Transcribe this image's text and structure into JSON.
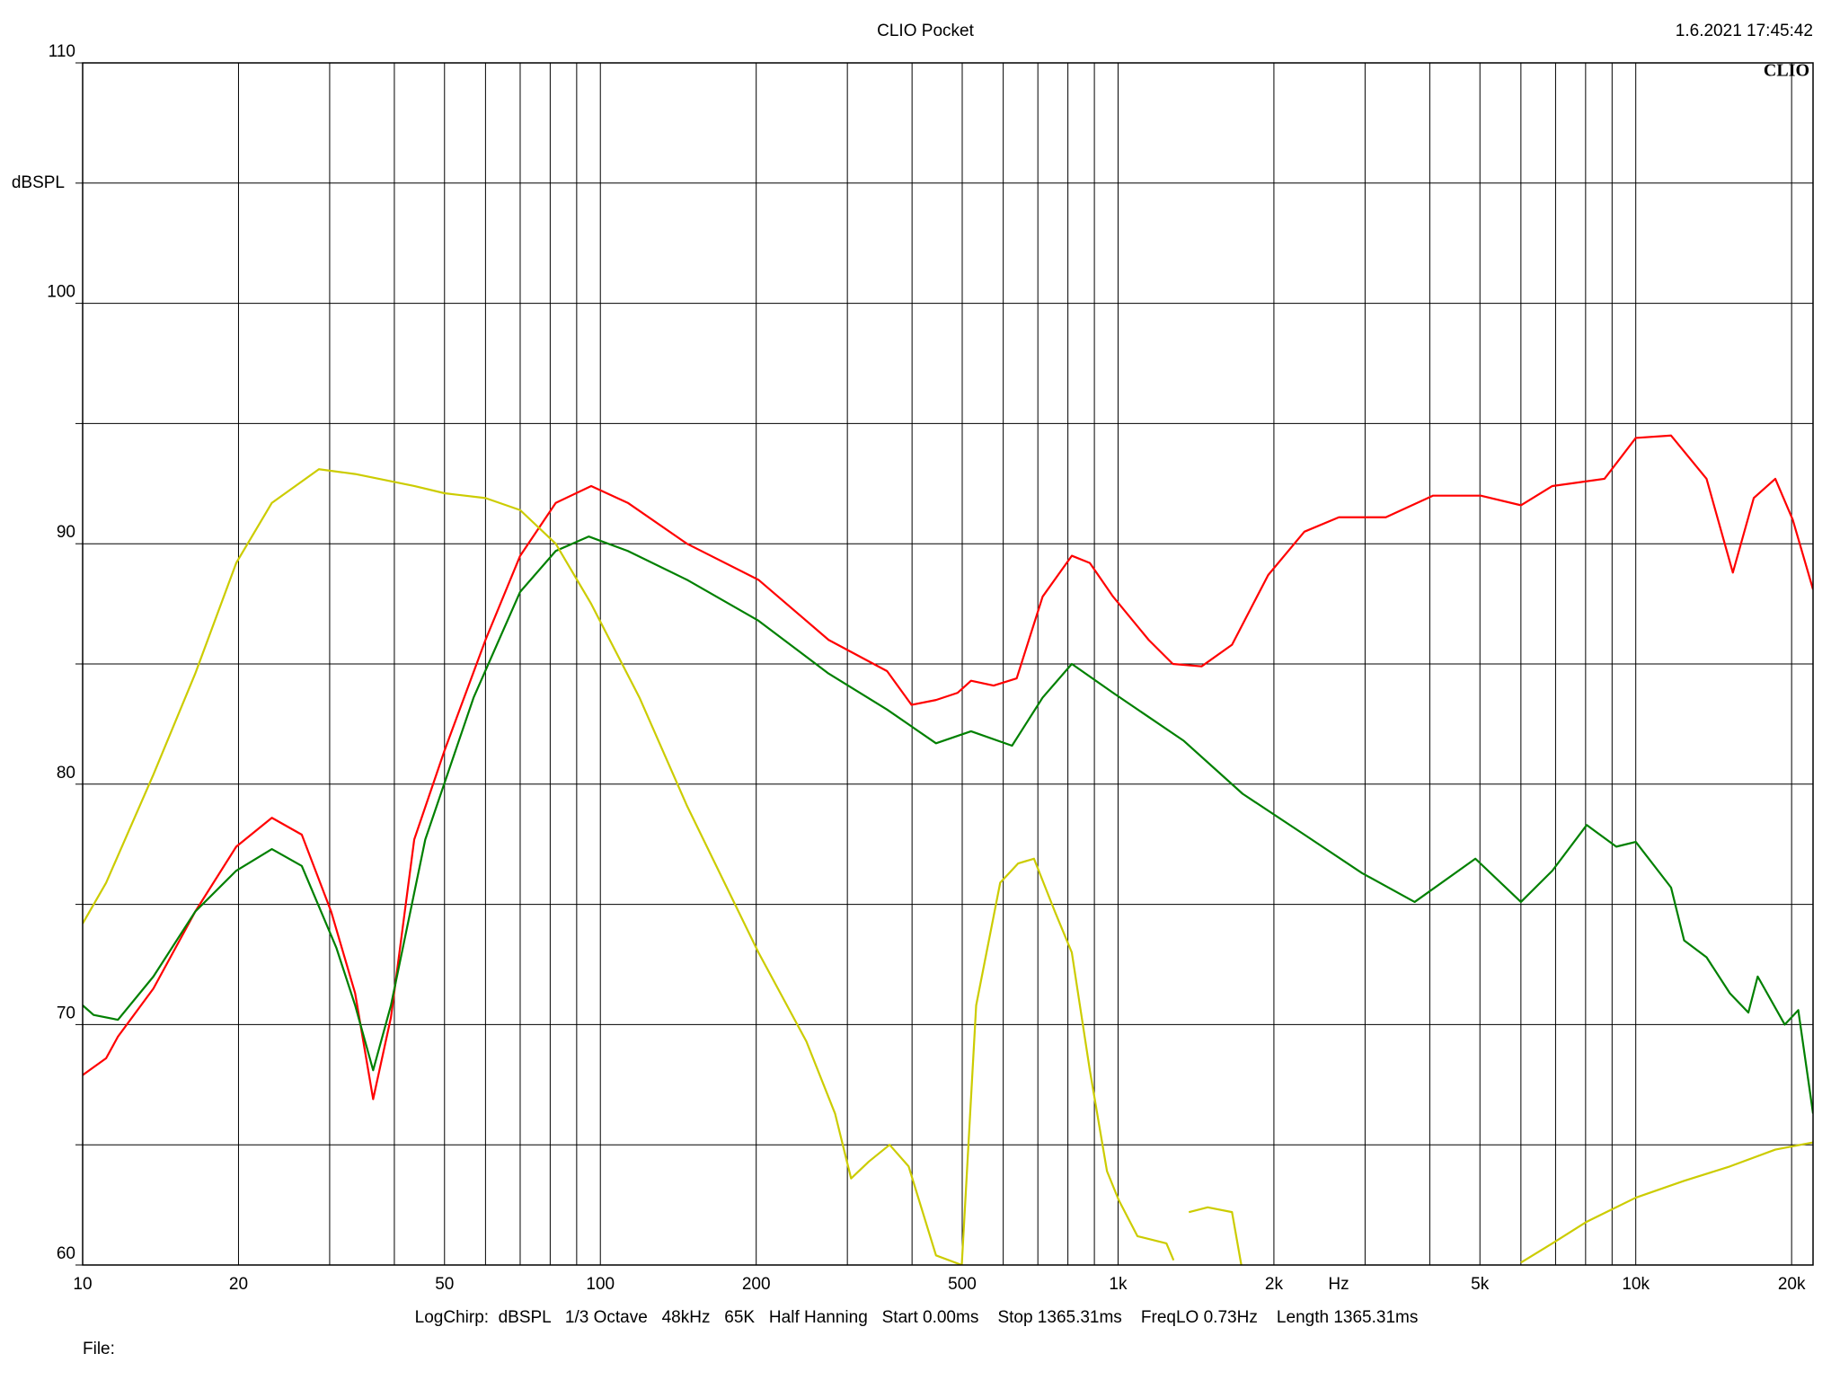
{
  "chart_data": {
    "type": "line",
    "title": "CLIO Pocket",
    "timestamp": "1.6.2021 17:45:42",
    "logo": "CLIO",
    "ylabel": "dBSPL",
    "xlabel": "Hz",
    "info": "LogChirp:  dBSPL   1/3 Octave   48kHz   65K   Half Hanning   Start 0.00ms    Stop 1365.31ms    FreqLO 0.73Hz    Length 1365.31ms",
    "file_label": "File:",
    "xscale": "log",
    "grid": true,
    "xlim": [
      10,
      22000
    ],
    "ylim": [
      60,
      110
    ],
    "xticks": [
      10,
      20,
      50,
      100,
      200,
      500,
      {
        "value": 1000,
        "label": "1k"
      },
      {
        "value": 2000,
        "label": "2k"
      },
      {
        "value": 5000,
        "label": "5k"
      },
      {
        "value": 10000,
        "label": "10k"
      },
      {
        "value": 20000,
        "label": "20k"
      }
    ],
    "xminor": [
      30,
      40,
      60,
      70,
      80,
      90,
      300,
      400,
      600,
      700,
      800,
      900,
      3000,
      4000,
      6000,
      7000,
      8000,
      9000
    ],
    "yticks": [
      60,
      70,
      80,
      90,
      100,
      110
    ],
    "yminor": [
      65,
      75,
      85,
      95,
      105
    ],
    "series": [
      {
        "name": "red",
        "color": "#ff0000",
        "x": [
          10,
          11.1,
          11.7,
          13.7,
          16.5,
          19.8,
          23.2,
          26.5,
          30.2,
          33.6,
          36.4,
          39.4,
          43.7,
          50,
          60,
          70,
          82,
          96,
          113,
          147,
          202,
          276,
          358,
          399,
          445,
          490,
          520,
          575,
          637,
          715,
          814,
          882,
          978,
          1146,
          1276,
          1450,
          1660,
          1950,
          2290,
          2670,
          3290,
          4060,
          5020,
          6000,
          6900,
          8700,
          10000,
          11700,
          13700,
          15400,
          16900,
          18600,
          20100,
          22000
        ],
        "values": [
          67.9,
          68.6,
          69.5,
          71.5,
          74.7,
          77.4,
          78.6,
          77.9,
          74.7,
          71.3,
          66.9,
          70.3,
          77.7,
          81.4,
          86.0,
          89.5,
          91.7,
          92.4,
          91.7,
          90.0,
          88.5,
          86.0,
          84.7,
          83.3,
          83.5,
          83.8,
          84.3,
          84.1,
          84.4,
          87.8,
          89.5,
          89.2,
          87.8,
          86.0,
          85.0,
          84.9,
          85.8,
          88.7,
          90.5,
          91.1,
          91.1,
          92.0,
          92.0,
          91.6,
          92.4,
          92.7,
          94.4,
          94.5,
          92.7,
          88.8,
          91.9,
          92.7,
          91.0,
          88.1
        ]
      },
      {
        "name": "green",
        "color": "#008000",
        "x": [
          10,
          10.5,
          11.7,
          13.7,
          16.5,
          19.8,
          23.2,
          26.5,
          30.9,
          33.6,
          36.4,
          39.4,
          45.9,
          56.9,
          70,
          82,
          95,
          113,
          147,
          202,
          276,
          358,
          445,
          520,
          624,
          715,
          814,
          978,
          1340,
          1740,
          2290,
          2960,
          3740,
          4900,
          6000,
          6900,
          8040,
          9170,
          10000,
          11700,
          12400,
          13700,
          15200,
          16500,
          17200,
          19400,
          20600,
          22000
        ],
        "values": [
          70.8,
          70.4,
          70.2,
          72.0,
          74.7,
          76.4,
          77.3,
          76.6,
          73.2,
          70.8,
          68.1,
          70.8,
          77.7,
          83.6,
          88.0,
          89.7,
          90.3,
          89.7,
          88.5,
          86.8,
          84.6,
          83.1,
          81.7,
          82.2,
          81.6,
          83.6,
          85.0,
          83.8,
          81.8,
          79.6,
          77.9,
          76.3,
          75.1,
          76.9,
          75.1,
          76.4,
          78.3,
          77.4,
          77.6,
          75.7,
          73.5,
          72.8,
          71.3,
          70.5,
          72.0,
          70.0,
          70.6,
          66.3
        ]
      },
      {
        "name": "yellow",
        "color": "#cccc00",
        "x": [
          10,
          11.1,
          13.7,
          16.5,
          19.8,
          23.2,
          28.6,
          33.6,
          43.7,
          50,
          60,
          70,
          82,
          96,
          119,
          147,
          202,
          250,
          284,
          305,
          330,
          362,
          394,
          445,
          499,
          532,
          592,
          641,
          688,
          755,
          814,
          882,
          952,
          1003,
          1090,
          1240,
          1280,
          1320,
          1370,
          1490,
          1660,
          1730,
          4000,
          6000,
          6900,
          8040,
          10000,
          12400,
          15200,
          18600,
          22000
        ],
        "values": [
          74.2,
          75.9,
          80.4,
          84.6,
          89.2,
          91.7,
          93.1,
          92.9,
          92.4,
          92.1,
          91.9,
          91.4,
          90.0,
          87.5,
          83.6,
          79.1,
          73.0,
          69.3,
          66.3,
          63.6,
          64.3,
          65.0,
          64.1,
          60.4,
          60.0,
          70.8,
          75.9,
          76.7,
          76.9,
          74.7,
          73.0,
          68.1,
          63.9,
          62.7,
          61.2,
          60.9,
          60.2,
          null,
          62.2,
          62.4,
          62.2,
          60.0,
          null,
          60.1,
          60.9,
          61.8,
          62.8,
          63.5,
          64.1,
          64.8,
          65.1
        ]
      }
    ]
  }
}
